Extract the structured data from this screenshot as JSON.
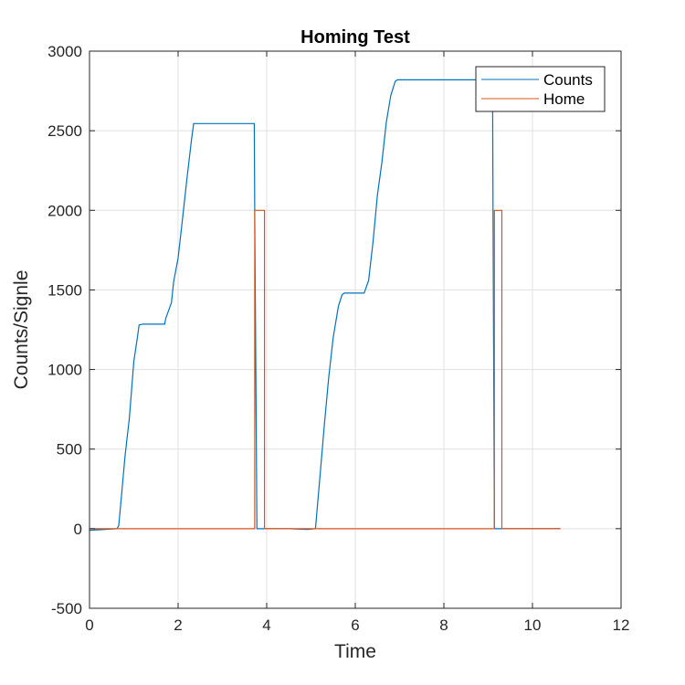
{
  "chart_data": {
    "type": "line",
    "title": "Homing Test",
    "xlabel": "Time",
    "ylabel": "Counts/Signle",
    "xlim": [
      0,
      12
    ],
    "ylim": [
      -500,
      3000
    ],
    "xticks": [
      0,
      2,
      4,
      6,
      8,
      10,
      12
    ],
    "yticks": [
      -500,
      0,
      500,
      1000,
      1500,
      2000,
      2500,
      3000
    ],
    "grid": true,
    "legend_position": "top-right",
    "series": [
      {
        "name": "Counts",
        "color": "#0072BD",
        "x": [
          0,
          0.62,
          0.66,
          0.72,
          0.8,
          0.9,
          1.0,
          1.08,
          1.12,
          1.2,
          1.25,
          1.7,
          1.72,
          1.85,
          1.9,
          2.0,
          2.1,
          2.2,
          2.3,
          2.35,
          2.45,
          3.72,
          3.73,
          3.78,
          4.0,
          4.5,
          4.92,
          5.1,
          5.2,
          5.3,
          5.4,
          5.5,
          5.62,
          5.7,
          5.75,
          6.2,
          6.3,
          6.4,
          6.5,
          6.6,
          6.7,
          6.8,
          6.9,
          6.95,
          7.1,
          9.1,
          9.11,
          9.14,
          9.3,
          10.63
        ],
        "y": [
          -10,
          0,
          20,
          200,
          450,
          700,
          1050,
          1200,
          1280,
          1285,
          1285,
          1285,
          1320,
          1420,
          1550,
          1700,
          1950,
          2200,
          2440,
          2545,
          2545,
          2545,
          2000,
          0,
          0,
          0,
          -5,
          0,
          320,
          650,
          950,
          1200,
          1400,
          1470,
          1480,
          1480,
          1560,
          1800,
          2100,
          2300,
          2550,
          2720,
          2810,
          2820,
          2820,
          2820,
          2000,
          0,
          0,
          0
        ]
      },
      {
        "name": "Home",
        "color": "#D95319",
        "x": [
          0,
          3.73,
          3.73,
          3.95,
          3.95,
          9.14,
          9.14,
          9.31,
          9.31,
          10.63
        ],
        "y": [
          0,
          0,
          2000,
          2000,
          0,
          0,
          2000,
          2000,
          0,
          0
        ]
      }
    ]
  }
}
